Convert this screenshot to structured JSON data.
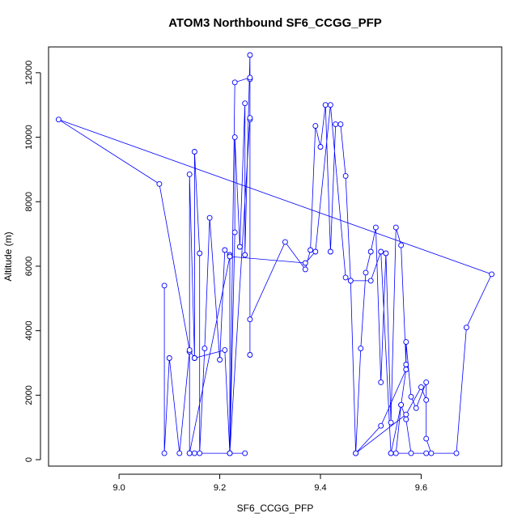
{
  "chart_data": {
    "type": "scatter",
    "title": "ATOM3 Northbound SF6_CCGG_PFP",
    "xlabel": "SF6_CCGG_PFP",
    "ylabel": "Altitude (m)",
    "xlim": [
      8.86,
      9.76
    ],
    "ylim": [
      -200,
      12800
    ],
    "xticks": [
      9.0,
      9.2,
      9.4,
      9.6
    ],
    "xtick_labels": [
      "9.0",
      "9.2",
      "9.4",
      "9.6"
    ],
    "yticks": [
      0,
      2000,
      4000,
      6000,
      8000,
      10000,
      12000
    ],
    "ytick_labels": [
      "0",
      "2000",
      "4000",
      "6000",
      "8000",
      "10000",
      "12000"
    ],
    "grid": false,
    "legend": "none",
    "style": "lines-and-open-circles",
    "series": [
      {
        "color": "#0000ff",
        "x": [
          9.09,
          9.09,
          9.1,
          9.12,
          9.14,
          9.14,
          9.14,
          9.15,
          9.15,
          9.16,
          9.16,
          9.17,
          9.18,
          9.2,
          9.21,
          9.22,
          9.22,
          9.23,
          9.23,
          9.24,
          9.25,
          9.25,
          9.26,
          9.26,
          9.26,
          9.26,
          9.33,
          9.37,
          9.38,
          9.39,
          9.4,
          9.41,
          9.42,
          9.43,
          9.44,
          9.45,
          9.46,
          9.47,
          9.48,
          9.49,
          9.5,
          9.51,
          9.52,
          9.53,
          9.54,
          9.55,
          9.56,
          9.57,
          9.57,
          9.58,
          9.59,
          9.61,
          9.61,
          9.62,
          9.67,
          9.69,
          9.74,
          8.88,
          9.08,
          9.14,
          9.15,
          9.21,
          9.22,
          9.23,
          9.26,
          9.26,
          9.26,
          9.22,
          9.25,
          9.15,
          9.14,
          9.22,
          9.37,
          9.39,
          9.42,
          9.45,
          9.46,
          9.5,
          9.52,
          9.54,
          9.55,
          9.56,
          9.57,
          9.58,
          9.61,
          9.54,
          9.56,
          9.57,
          9.52,
          9.47,
          9.57,
          9.6,
          9.61
        ],
        "y": [
          5400,
          200,
          3150,
          200,
          3350,
          200,
          8850,
          3150,
          9550,
          6400,
          200,
          3450,
          7500,
          3100,
          6500,
          6350,
          200,
          7050,
          10000,
          6600,
          11050,
          6350,
          12550,
          11800,
          10550,
          4350,
          6750,
          5900,
          6500,
          10350,
          9700,
          11000,
          6450,
          10400,
          10400,
          8800,
          5550,
          200,
          3450,
          5800,
          6450,
          7200,
          2400,
          6400,
          1150,
          7200,
          6650,
          2950,
          3650,
          1950,
          1600,
          2400,
          650,
          200,
          200,
          4100,
          5750,
          10550,
          8550,
          3400,
          3150,
          3400,
          200,
          11700,
          11850,
          3250,
          10600,
          200,
          200,
          200,
          200,
          6300,
          6100,
          6450,
          11000,
          5650,
          5550,
          5550,
          6450,
          200,
          200,
          1700,
          1250,
          200,
          200,
          200,
          1700,
          2800,
          1050,
          200,
          1400,
          2250,
          1850
        ]
      }
    ]
  }
}
